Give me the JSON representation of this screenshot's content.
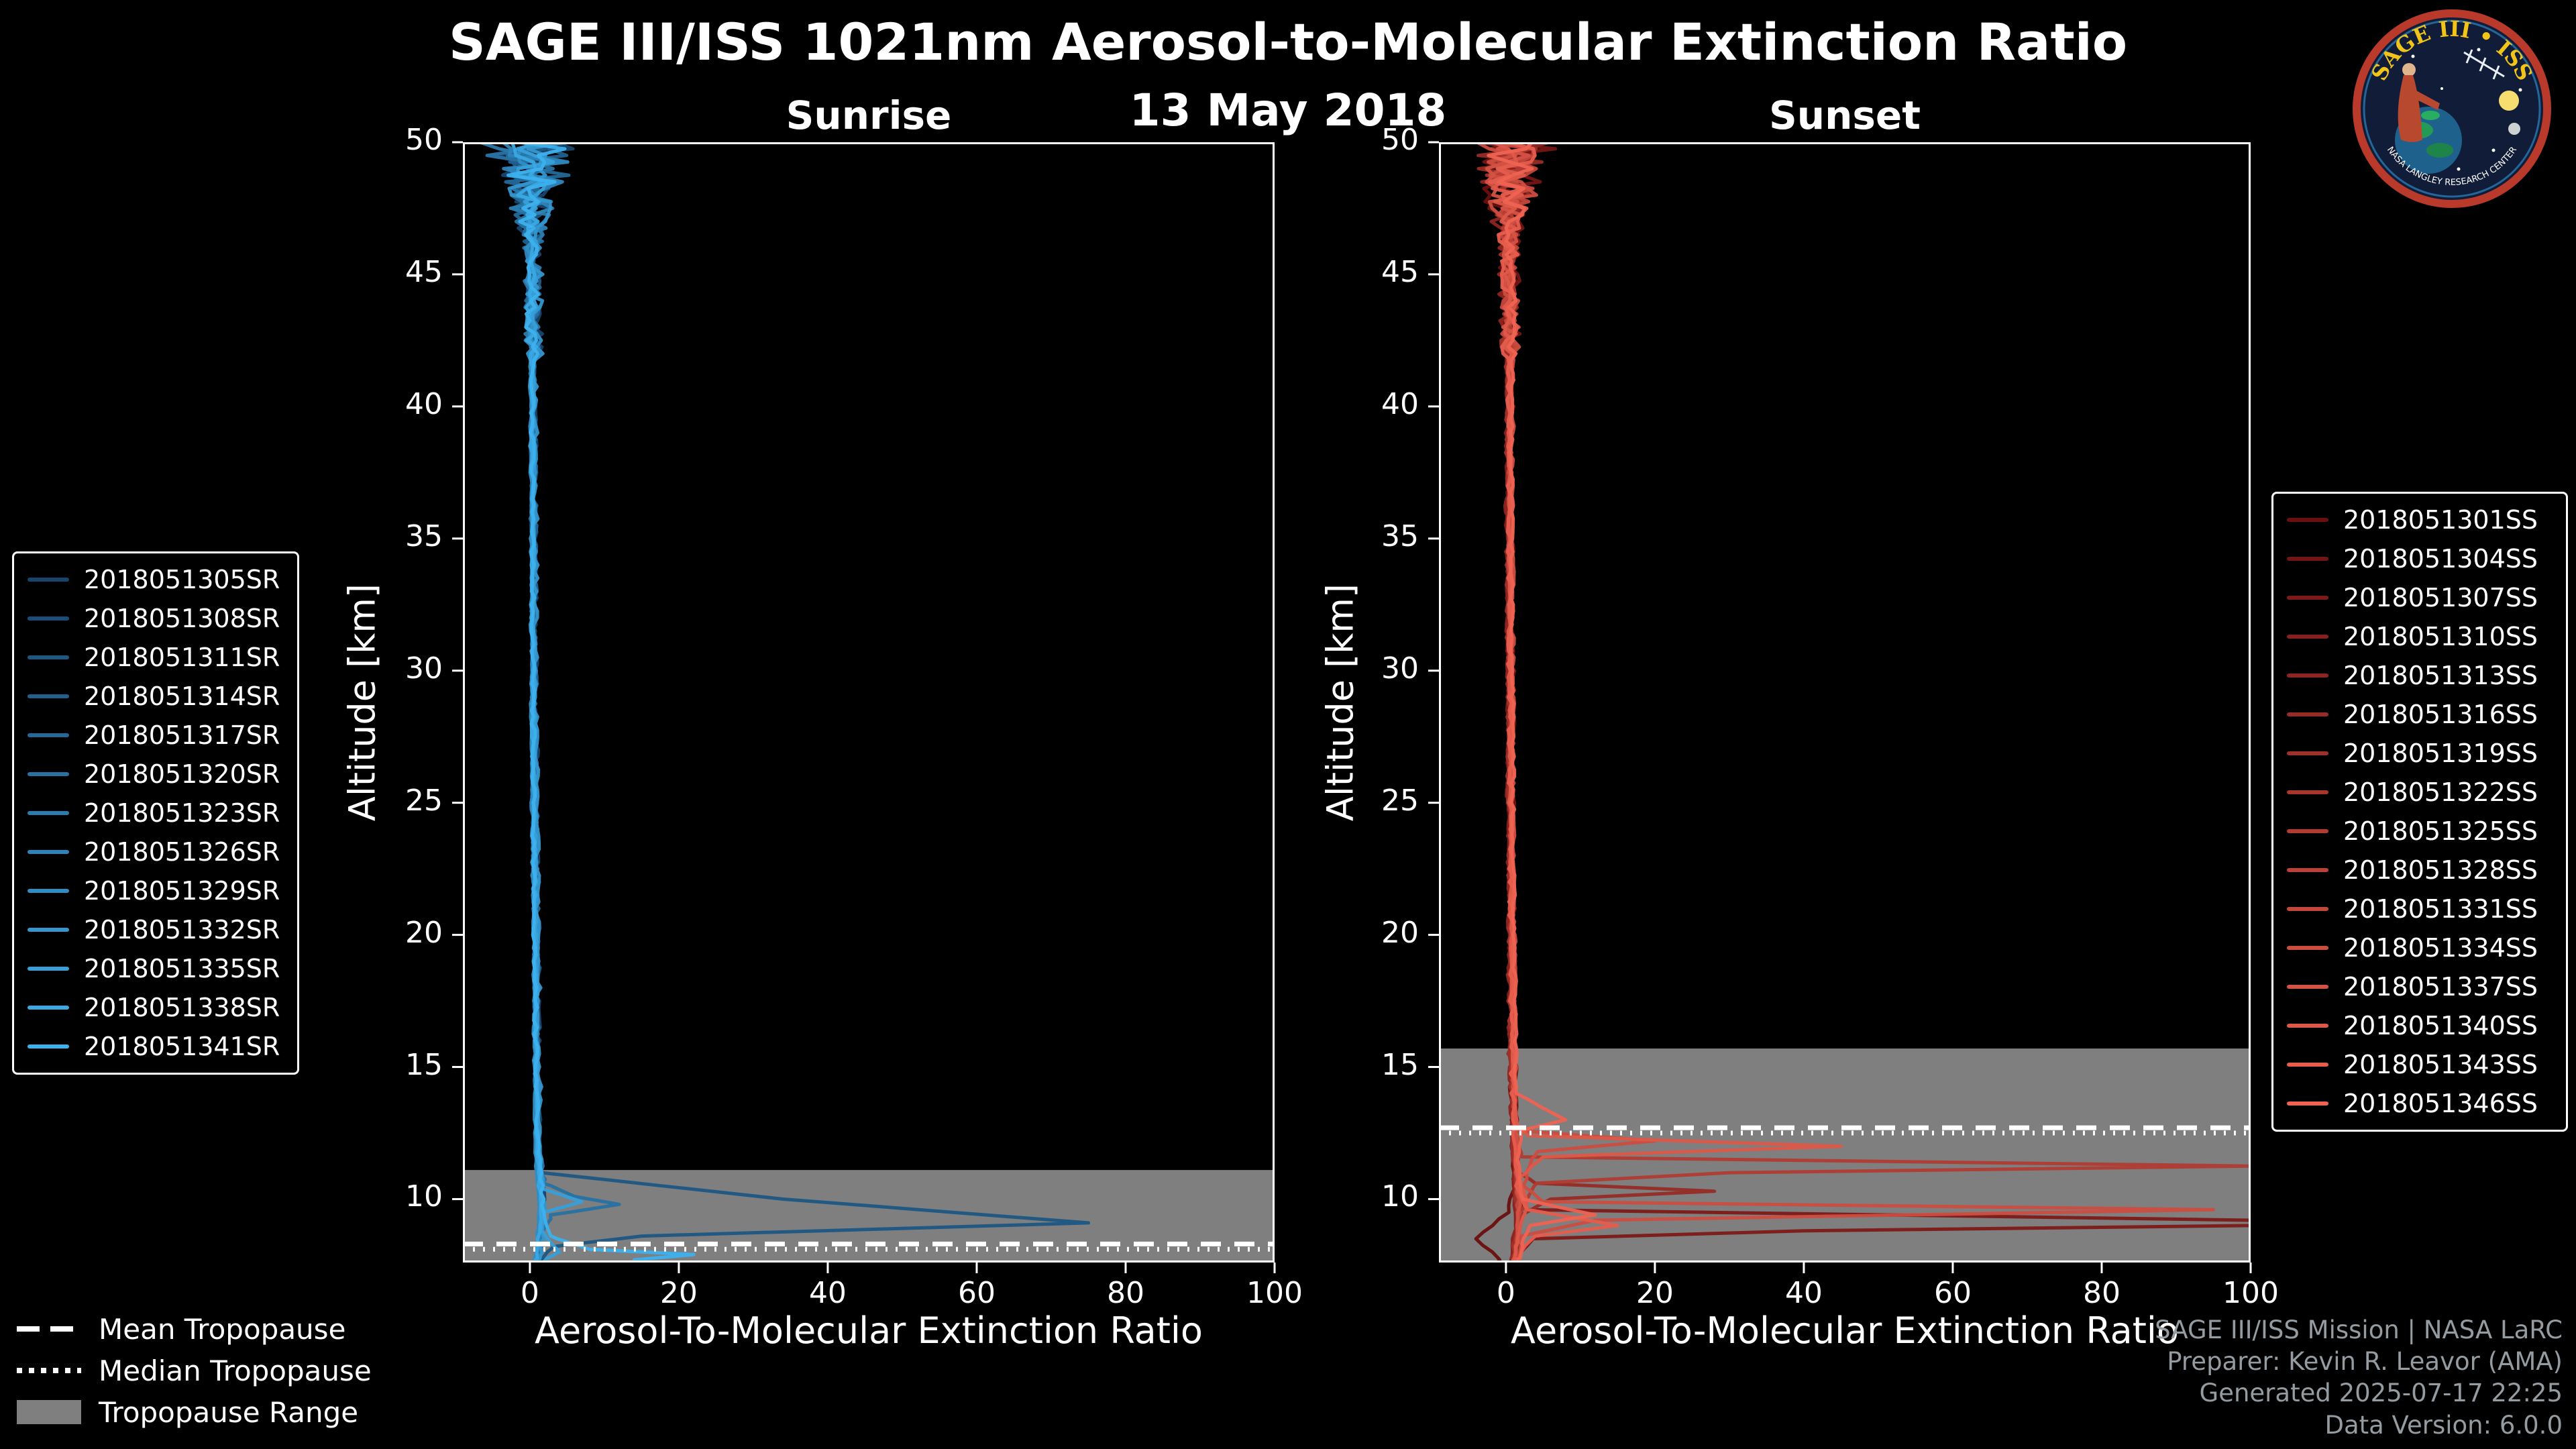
{
  "header": {
    "title": "SAGE III/ISS 1021nm Aerosol-to-Molecular Extinction Ratio",
    "date": "13 May 2018"
  },
  "logo": {
    "text_top": "SAGE III • ISS",
    "text_ring": "NASA LANGLEY RESEARCH CENTER"
  },
  "tropopause_legend": [
    {
      "label": "Mean Tropopause",
      "style": "dashed"
    },
    {
      "label": "Median Tropopause",
      "style": "dotted"
    },
    {
      "label": "Tropopause Range",
      "style": "patch"
    }
  ],
  "footer": {
    "credits": [
      "SAGE III/ISS Mission | NASA LaRC",
      "Preparer: Kevin R. Leavor (AMA)",
      "Generated 2025-07-17 22:25",
      "Data Version: 6.0.0"
    ]
  },
  "colors": {
    "background": "#000000",
    "tropopause_band": "#7f7f7f",
    "tropopause_lines": "#ffffff",
    "sunrise_dark": "#17456e",
    "sunrise_bright": "#3db1ee",
    "sunset_dark": "#6b0f0f",
    "sunset_bright": "#ef6352"
  },
  "chart_data": [
    {
      "type": "line",
      "title": "Sunrise",
      "xlabel": "Aerosol-To-Molecular Extinction Ratio",
      "ylabel": "Altitude [km]",
      "xlim": [
        -9,
        100
      ],
      "ylim": [
        7.6,
        50
      ],
      "xticks": [
        0,
        20,
        40,
        60,
        80,
        100
      ],
      "yticks": [
        10,
        15,
        20,
        25,
        30,
        35,
        40,
        45,
        50
      ],
      "grid": false,
      "legend_position": "left-outside",
      "tropopause": {
        "mean_km": 8.3,
        "median_km": 8.1,
        "range_km": [
          7.6,
          11.1
        ]
      },
      "noise": {
        "top_start": 46,
        "top_amp": 6.0,
        "mid_amp": 1.0,
        "low_amp": 0.3
      },
      "default_profile": [
        [
          50,
          0.3
        ],
        [
          47,
          0.4
        ],
        [
          44,
          0.3
        ],
        [
          40,
          0.4
        ],
        [
          35,
          0.5
        ],
        [
          30,
          0.5
        ],
        [
          25,
          0.6
        ],
        [
          20,
          0.8
        ],
        [
          16,
          0.9
        ],
        [
          13,
          1.0
        ],
        [
          11.5,
          1.1
        ],
        [
          10.5,
          1.4
        ],
        [
          9.5,
          1.6
        ],
        [
          8.5,
          1.3
        ],
        [
          7.7,
          1.0
        ]
      ],
      "series": [
        {
          "name": "2018051305SR",
          "color": "#17456e"
        },
        {
          "name": "2018051308SR",
          "color": "#1a4e79"
        },
        {
          "name": "2018051311SR",
          "color": "#1d5783",
          "profile": [
            [
              50,
              0.3
            ],
            [
              46,
              0.4
            ],
            [
              40,
              0.4
            ],
            [
              32,
              0.5
            ],
            [
              24,
              0.7
            ],
            [
              18,
              0.9
            ],
            [
              14,
              1.0
            ],
            [
              12,
              1.2
            ],
            [
              11,
              1.6
            ],
            [
              10,
              34
            ],
            [
              9.1,
              75
            ],
            [
              8.6,
              15
            ],
            [
              8.2,
              3
            ],
            [
              7.7,
              1.5
            ]
          ]
        },
        {
          "name": "2018051314SR",
          "color": "#21608e"
        },
        {
          "name": "2018051317SR",
          "color": "#246999"
        },
        {
          "name": "2018051320SR",
          "color": "#2772a3",
          "profile": [
            [
              50,
              0.3
            ],
            [
              46,
              0.4
            ],
            [
              40,
              0.4
            ],
            [
              32,
              0.5
            ],
            [
              24,
              0.7
            ],
            [
              18,
              0.9
            ],
            [
              14,
              1.0
            ],
            [
              12,
              1.1
            ],
            [
              10.6,
              2
            ],
            [
              10.1,
              6
            ],
            [
              9.8,
              12
            ],
            [
              9.4,
              3
            ],
            [
              8.6,
              1.5
            ],
            [
              7.7,
              1.2
            ]
          ]
        },
        {
          "name": "2018051323SR",
          "color": "#2a7bae"
        },
        {
          "name": "2018051326SR",
          "color": "#2d84b9"
        },
        {
          "name": "2018051329SR",
          "color": "#308dc3"
        },
        {
          "name": "2018051332SR",
          "color": "#3496ce"
        },
        {
          "name": "2018051335SR",
          "color": "#379fd9",
          "profile": [
            [
              50,
              0.4
            ],
            [
              46,
              0.4
            ],
            [
              40,
              0.5
            ],
            [
              32,
              0.5
            ],
            [
              24,
              0.7
            ],
            [
              18,
              0.9
            ],
            [
              14,
              1.0
            ],
            [
              12,
              1.2
            ],
            [
              10.4,
              1.6
            ],
            [
              9.9,
              7
            ],
            [
              9.5,
              2
            ],
            [
              8.8,
              1.6
            ],
            [
              8.0,
              4
            ],
            [
              7.7,
              2
            ]
          ]
        },
        {
          "name": "2018051338SR",
          "color": "#3aa8e3"
        },
        {
          "name": "2018051341SR",
          "color": "#3db1ee",
          "profile": [
            [
              50,
              0.4
            ],
            [
              46,
              0.5
            ],
            [
              40,
              0.5
            ],
            [
              32,
              0.6
            ],
            [
              24,
              0.7
            ],
            [
              18,
              0.9
            ],
            [
              14,
              1.1
            ],
            [
              12,
              1.3
            ],
            [
              10.5,
              1.8
            ],
            [
              9.5,
              2
            ],
            [
              8.6,
              3
            ],
            [
              8.1,
              8
            ],
            [
              7.9,
              22
            ],
            [
              7.7,
              14
            ]
          ]
        }
      ]
    },
    {
      "type": "line",
      "title": "Sunset",
      "xlabel": "Aerosol-To-Molecular Extinction Ratio",
      "ylabel": "Altitude [km]",
      "xlim": [
        -9,
        100
      ],
      "ylim": [
        7.6,
        50
      ],
      "xticks": [
        0,
        20,
        40,
        60,
        80,
        100
      ],
      "yticks": [
        10,
        15,
        20,
        25,
        30,
        35,
        40,
        45,
        50
      ],
      "grid": false,
      "legend_position": "right-outside",
      "tropopause": {
        "mean_km": 12.7,
        "median_km": 12.5,
        "range_km": [
          7.6,
          15.7
        ]
      },
      "noise": {
        "top_start": 46,
        "top_amp": 5.0,
        "mid_amp": 1.0,
        "low_amp": 0.3
      },
      "default_profile": [
        [
          50,
          0.4
        ],
        [
          47,
          0.5
        ],
        [
          44,
          0.4
        ],
        [
          40,
          0.5
        ],
        [
          35,
          0.5
        ],
        [
          30,
          0.6
        ],
        [
          25,
          0.7
        ],
        [
          20,
          0.8
        ],
        [
          16,
          0.9
        ],
        [
          14,
          1.0
        ],
        [
          12.5,
          1.2
        ],
        [
          11,
          1.4
        ],
        [
          10,
          1.6
        ],
        [
          9,
          1.6
        ],
        [
          8.3,
          1.3
        ],
        [
          7.7,
          1.1
        ]
      ],
      "series": [
        {
          "name": "2018051301SS",
          "color": "#6b0f0f",
          "profile": [
            [
              50,
              0.4
            ],
            [
              46,
              0.4
            ],
            [
              40,
              0.5
            ],
            [
              32,
              0.5
            ],
            [
              24,
              0.6
            ],
            [
              18,
              0.8
            ],
            [
              14,
              0.9
            ],
            [
              12,
              1.0
            ],
            [
              10.5,
              1.2
            ],
            [
              9.5,
              0.5
            ],
            [
              9.0,
              -2
            ],
            [
              8.5,
              -4
            ],
            [
              8.0,
              -2
            ],
            [
              7.7,
              -1
            ]
          ]
        },
        {
          "name": "2018051304SS",
          "color": "#741513"
        },
        {
          "name": "2018051307SS",
          "color": "#7d1a18",
          "profile": [
            [
              50,
              0.4
            ],
            [
              46,
              0.5
            ],
            [
              40,
              0.5
            ],
            [
              32,
              0.5
            ],
            [
              24,
              0.7
            ],
            [
              18,
              0.9
            ],
            [
              14,
              1.0
            ],
            [
              12,
              1.1
            ],
            [
              10.5,
              1.4
            ],
            [
              9.6,
              3
            ],
            [
              9.2,
              100
            ],
            [
              9.0,
              100
            ],
            [
              8.8,
              40
            ],
            [
              8.5,
              4
            ],
            [
              7.7,
              1.5
            ]
          ]
        },
        {
          "name": "2018051310SS",
          "color": "#85201c"
        },
        {
          "name": "2018051313SS",
          "color": "#8e2521"
        },
        {
          "name": "2018051316SS",
          "color": "#972b25",
          "profile": [
            [
              50,
              0.4
            ],
            [
              46,
              0.5
            ],
            [
              40,
              0.5
            ],
            [
              32,
              0.5
            ],
            [
              24,
              0.7
            ],
            [
              18,
              0.8
            ],
            [
              14,
              1.0
            ],
            [
              12,
              1.2
            ],
            [
              11,
              1.5
            ],
            [
              10.6,
              4
            ],
            [
              10.3,
              28
            ],
            [
              10.0,
              6
            ],
            [
              9.4,
              2
            ],
            [
              8.6,
              1.5
            ],
            [
              7.7,
              1.2
            ]
          ]
        },
        {
          "name": "2018051319SS",
          "color": "#a0312a"
        },
        {
          "name": "2018051322SS",
          "color": "#a9362e"
        },
        {
          "name": "2018051325SS",
          "color": "#b13c33",
          "profile": [
            [
              50,
              0.4
            ],
            [
              46,
              0.5
            ],
            [
              40,
              0.5
            ],
            [
              32,
              0.5
            ],
            [
              24,
              0.7
            ],
            [
              18,
              0.9
            ],
            [
              14,
              1.0
            ],
            [
              12.5,
              1.2
            ],
            [
              11.6,
              2
            ],
            [
              11.25,
              100
            ],
            [
              11.0,
              30
            ],
            [
              10.6,
              4
            ],
            [
              9.5,
              2
            ],
            [
              8.5,
              1.5
            ],
            [
              7.7,
              1.2
            ]
          ]
        },
        {
          "name": "2018051328SS",
          "color": "#ba4137"
        },
        {
          "name": "2018051331SS",
          "color": "#c3473c"
        },
        {
          "name": "2018051334SS",
          "color": "#cc4d40",
          "profile": [
            [
              50,
              0.5
            ],
            [
              46,
              0.5
            ],
            [
              40,
              0.6
            ],
            [
              32,
              0.6
            ],
            [
              24,
              0.7
            ],
            [
              18,
              0.9
            ],
            [
              14,
              1.0
            ],
            [
              12.6,
              1.5
            ],
            [
              12.2,
              20
            ],
            [
              11.8,
              4
            ],
            [
              10.5,
              2
            ],
            [
              9.9,
              5
            ],
            [
              9.6,
              95
            ],
            [
              9.2,
              12
            ],
            [
              8.6,
              2
            ],
            [
              7.7,
              1.5
            ]
          ]
        },
        {
          "name": "2018051337SS",
          "color": "#d45245"
        },
        {
          "name": "2018051340SS",
          "color": "#dd5849",
          "profile": [
            [
              50,
              0.5
            ],
            [
              46,
              0.5
            ],
            [
              40,
              0.6
            ],
            [
              32,
              0.6
            ],
            [
              24,
              0.7
            ],
            [
              18,
              0.9
            ],
            [
              14,
              1.1
            ],
            [
              12.9,
              1.5
            ],
            [
              12.4,
              3
            ],
            [
              12.0,
              45
            ],
            [
              11.6,
              5
            ],
            [
              10.8,
              2
            ],
            [
              9.8,
              3
            ],
            [
              9.0,
              2
            ],
            [
              8.2,
              1.5
            ],
            [
              7.7,
              1.2
            ]
          ]
        },
        {
          "name": "2018051343SS",
          "color": "#e65d4e",
          "profile": [
            [
              50,
              0.5
            ],
            [
              46,
              0.5
            ],
            [
              40,
              0.5
            ],
            [
              32,
              0.6
            ],
            [
              24,
              0.7
            ],
            [
              18,
              0.9
            ],
            [
              14,
              1.0
            ],
            [
              12,
              1.2
            ],
            [
              10.5,
              1.5
            ],
            [
              9.6,
              3
            ],
            [
              9.0,
              15
            ],
            [
              8.6,
              4
            ],
            [
              8.0,
              2
            ],
            [
              7.7,
              1.5
            ]
          ]
        },
        {
          "name": "2018051346SS",
          "color": "#ef6352",
          "profile": [
            [
              50,
              0.5
            ],
            [
              46,
              0.5
            ],
            [
              40,
              0.6
            ],
            [
              32,
              0.6
            ],
            [
              24,
              0.8
            ],
            [
              18,
              1.0
            ],
            [
              14,
              1.2
            ],
            [
              13.0,
              8
            ],
            [
              12.6,
              2
            ],
            [
              11.5,
              1.5
            ],
            [
              10,
              2
            ],
            [
              9.4,
              12
            ],
            [
              9.0,
              3
            ],
            [
              8.3,
              2
            ],
            [
              7.7,
              1.5
            ]
          ]
        }
      ]
    }
  ]
}
